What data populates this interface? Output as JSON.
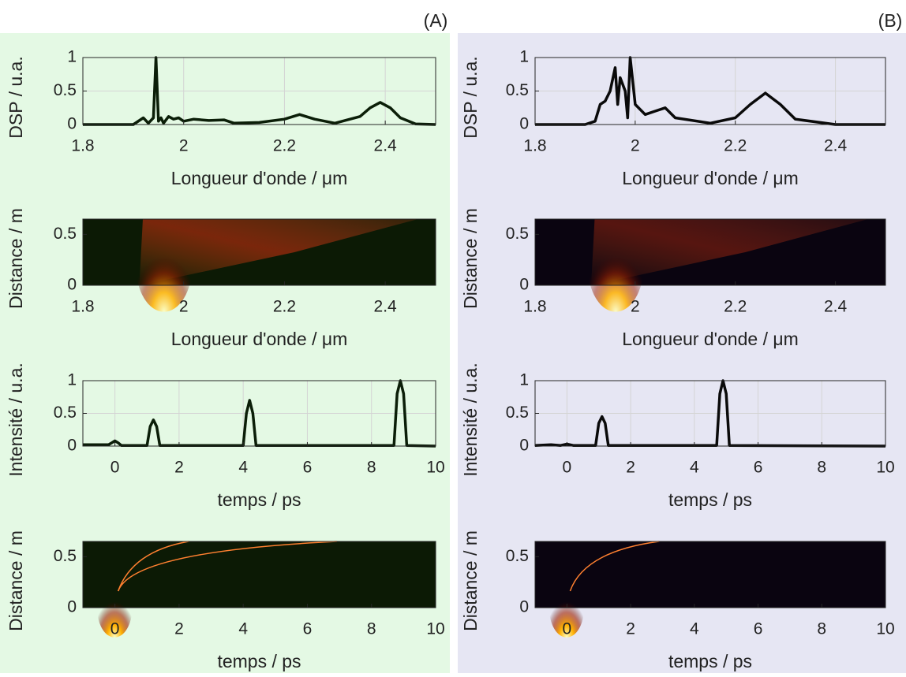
{
  "labels": [
    "(A)",
    "(B)"
  ],
  "chart_data": [
    {
      "type": "line",
      "x": [
        1.8,
        1.9,
        1.92,
        1.93,
        1.94,
        1.945,
        1.95,
        1.955,
        1.96,
        1.97,
        1.98,
        1.99,
        2.0,
        2.02,
        2.05,
        2.08,
        2.1,
        2.15,
        2.2,
        2.23,
        2.26,
        2.3,
        2.35,
        2.37,
        2.39,
        2.41,
        2.43,
        2.46,
        2.5
      ],
      "values": [
        0,
        0,
        0.1,
        0.02,
        0.1,
        1,
        0.05,
        0.1,
        0.02,
        0.12,
        0.08,
        0.1,
        0.05,
        0.08,
        0.06,
        0.07,
        0.02,
        0.03,
        0.08,
        0.15,
        0.08,
        0.02,
        0.12,
        0.25,
        0.33,
        0.25,
        0.1,
        0.01,
        0
      ],
      "color": "#0b1e08",
      "xlim": [
        1.8,
        2.5
      ],
      "xticks": [
        1.8,
        2,
        2.2,
        2.4
      ],
      "ylim": [
        0,
        1
      ],
      "yticks": [
        0,
        0.5,
        1
      ],
      "x_label": "Longueur d'onde / μm",
      "y_label": "DSP / u.a.",
      "grid": true
    },
    {
      "type": "heatmap",
      "color": "#0c1a05",
      "xlim": [
        1.8,
        2.5
      ],
      "xticks": [
        1.8,
        2,
        2.2,
        2.4
      ],
      "ylim": [
        0,
        0.65
      ],
      "yticks": [
        0,
        0.5
      ],
      "x_label": "Longueur d'onde / μm",
      "y_label": "Distance / m"
    },
    {
      "type": "line",
      "x": [
        -1,
        -0.2,
        -0.1,
        0,
        0.1,
        0.2,
        1.0,
        1.1,
        1.2,
        1.3,
        1.4,
        4.0,
        4.1,
        4.2,
        4.3,
        4.4,
        8.7,
        8.8,
        8.9,
        9.0,
        9.1,
        10
      ],
      "values": [
        0.02,
        0.02,
        0.05,
        0.08,
        0.05,
        0.01,
        0.01,
        0.3,
        0.4,
        0.3,
        0.01,
        0.01,
        0.5,
        0.7,
        0.5,
        0.01,
        0.01,
        0.8,
        1,
        0.8,
        0.01,
        0
      ],
      "color": "#0b1e08",
      "xlim": [
        -1,
        10
      ],
      "xticks": [
        0,
        2,
        4,
        6,
        8,
        10
      ],
      "ylim": [
        0,
        1
      ],
      "yticks": [
        0,
        0.5,
        1
      ],
      "x_label": "temps / ps",
      "y_label": "Intensité / u.a.",
      "grid": true
    },
    {
      "type": "heatmap",
      "color": "#0c1a05",
      "xlim": [
        -1,
        10
      ],
      "xticks": [
        0,
        2,
        4,
        6,
        8,
        10
      ],
      "ylim": [
        0,
        0.65
      ],
      "yticks": [
        0,
        0.5
      ],
      "x_label": "temps / ps",
      "y_label": "Distance / m"
    },
    {
      "type": "line",
      "x": [
        1.8,
        1.9,
        1.92,
        1.93,
        1.94,
        1.95,
        1.96,
        1.965,
        1.97,
        1.98,
        1.985,
        1.99,
        2.0,
        2.02,
        2.04,
        2.06,
        2.08,
        2.15,
        2.2,
        2.23,
        2.26,
        2.29,
        2.32,
        2.4,
        2.5
      ],
      "values": [
        0,
        0,
        0.05,
        0.3,
        0.35,
        0.5,
        0.85,
        0.3,
        0.7,
        0.5,
        0.1,
        1,
        0.3,
        0.15,
        0.2,
        0.25,
        0.1,
        0.02,
        0.1,
        0.3,
        0.47,
        0.3,
        0.08,
        0,
        0
      ],
      "color": "#0a0a0a",
      "xlim": [
        1.8,
        2.5
      ],
      "xticks": [
        1.8,
        2,
        2.2,
        2.4
      ],
      "ylim": [
        0,
        1
      ],
      "yticks": [
        0,
        0.5,
        1
      ],
      "x_label": "Longueur d'onde / μm",
      "y_label": "DSP / u.a.",
      "grid": true
    },
    {
      "type": "heatmap",
      "color": "#0a0410",
      "xlim": [
        1.8,
        2.5
      ],
      "xticks": [
        1.8,
        2,
        2.2,
        2.4
      ],
      "ylim": [
        0,
        0.65
      ],
      "yticks": [
        0,
        0.5
      ],
      "x_label": "Longueur d'onde / μm",
      "y_label": "Distance / m"
    },
    {
      "type": "line",
      "x": [
        -1,
        -0.5,
        -0.2,
        0,
        0.2,
        0.9,
        1.0,
        1.1,
        1.2,
        1.3,
        4.7,
        4.8,
        4.9,
        5.0,
        5.1,
        10
      ],
      "values": [
        0.01,
        0.02,
        0.01,
        0.03,
        0.01,
        0.01,
        0.35,
        0.45,
        0.35,
        0.01,
        0.01,
        0.8,
        1,
        0.8,
        0.01,
        0
      ],
      "color": "#0a0a0a",
      "xlim": [
        -1,
        10
      ],
      "xticks": [
        0,
        2,
        4,
        6,
        8,
        10
      ],
      "ylim": [
        0,
        1
      ],
      "yticks": [
        0,
        0.5,
        1
      ],
      "x_label": "temps / ps",
      "y_label": "Intensité / u.a.",
      "grid": true
    },
    {
      "type": "heatmap",
      "color": "#0a0410",
      "xlim": [
        -1,
        10
      ],
      "xticks": [
        0,
        2,
        4,
        6,
        8,
        10
      ],
      "ylim": [
        0,
        0.65
      ],
      "yticks": [
        0,
        0.5
      ],
      "x_label": "temps / ps",
      "y_label": "Distance / m"
    }
  ]
}
